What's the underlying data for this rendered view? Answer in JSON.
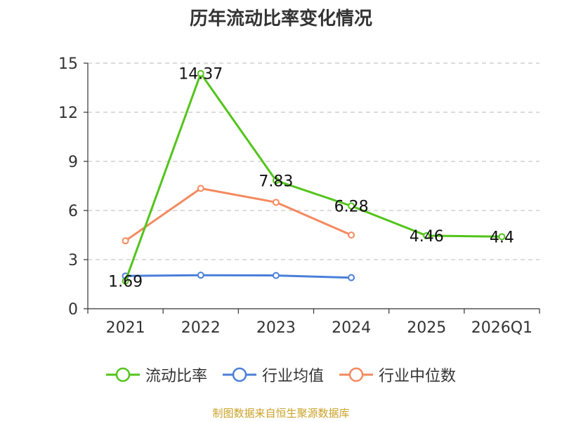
{
  "chart_data": {
    "type": "line",
    "title": "历年流动比率变化情况",
    "categories": [
      "2021",
      "2022",
      "2023",
      "2024",
      "2025",
      "2026Q1"
    ],
    "ylim": [
      0,
      15
    ],
    "yticks": [
      0,
      3,
      6,
      9,
      12,
      15
    ],
    "ytick_labels": [
      "0",
      "3",
      "6",
      "9",
      "12",
      "15"
    ],
    "grid": true,
    "legend_position": "bottom",
    "series": [
      {
        "name": "流动比率",
        "color": "#52c41a",
        "values": [
          1.69,
          14.37,
          7.83,
          6.28,
          4.46,
          4.4
        ],
        "data_labels": [
          "1.69",
          "14.37",
          "7.83",
          "6.28",
          "4.46",
          "4.4"
        ]
      },
      {
        "name": "行业均值",
        "color": "#4a7fd9",
        "values": [
          2.0,
          2.05,
          2.03,
          1.9,
          null,
          null
        ]
      },
      {
        "name": "行业中位数",
        "color": "#f4895f",
        "values": [
          4.15,
          7.35,
          6.5,
          4.5,
          null,
          null
        ]
      }
    ],
    "source": "制图数据来自恒生聚源数据库"
  }
}
